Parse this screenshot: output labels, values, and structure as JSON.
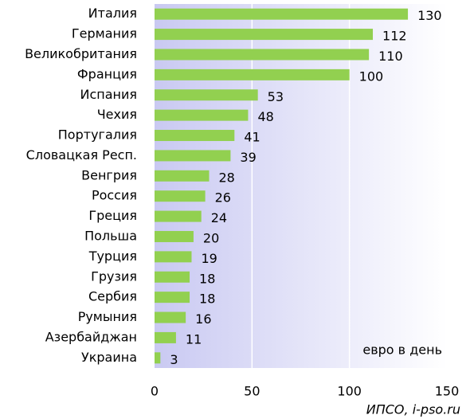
{
  "chart_data": {
    "type": "barh",
    "categories": [
      "Италия",
      "Германия",
      "Великобритания",
      "Франция",
      "Испания",
      "Чехия",
      "Португалия",
      "Словацкая Респ.",
      "Венгрия",
      "Россия",
      "Греция",
      "Польша",
      "Турция",
      "Грузия",
      "Сербия",
      "Румыния",
      "Азербайджан",
      "Украина"
    ],
    "values": [
      130,
      112,
      110,
      100,
      53,
      48,
      41,
      39,
      28,
      26,
      24,
      20,
      19,
      18,
      18,
      16,
      11,
      3
    ],
    "color": "#92d050",
    "xlim": [
      0,
      150
    ],
    "xticks": [
      0,
      50,
      100,
      150
    ],
    "grid": true,
    "annotation": "евро в день",
    "source": "ИПСО, i-pso.ru"
  }
}
